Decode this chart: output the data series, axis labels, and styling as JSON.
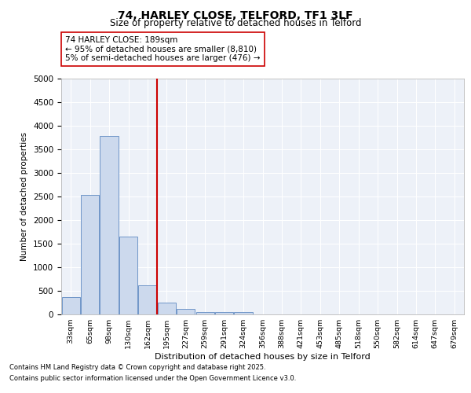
{
  "title1": "74, HARLEY CLOSE, TELFORD, TF1 3LF",
  "title2": "Size of property relative to detached houses in Telford",
  "xlabel": "Distribution of detached houses by size in Telford",
  "ylabel": "Number of detached properties",
  "categories": [
    "33sqm",
    "65sqm",
    "98sqm",
    "130sqm",
    "162sqm",
    "195sqm",
    "227sqm",
    "259sqm",
    "291sqm",
    "324sqm",
    "356sqm",
    "388sqm",
    "421sqm",
    "453sqm",
    "485sqm",
    "518sqm",
    "550sqm",
    "582sqm",
    "614sqm",
    "647sqm",
    "679sqm"
  ],
  "values": [
    370,
    2530,
    3780,
    1650,
    620,
    250,
    110,
    50,
    50,
    50,
    0,
    0,
    0,
    0,
    0,
    0,
    0,
    0,
    0,
    0,
    0
  ],
  "bar_color": "#ccd9ed",
  "bar_edge_color": "#7096c8",
  "vline_color": "#cc0000",
  "annotation_text": "74 HARLEY CLOSE: 189sqm\n← 95% of detached houses are smaller (8,810)\n5% of semi-detached houses are larger (476) →",
  "annotation_box_color": "#ffffff",
  "annotation_box_edge": "#cc0000",
  "ylim": [
    0,
    5000
  ],
  "yticks": [
    0,
    500,
    1000,
    1500,
    2000,
    2500,
    3000,
    3500,
    4000,
    4500,
    5000
  ],
  "bg_color": "#edf1f8",
  "footer1": "Contains HM Land Registry data © Crown copyright and database right 2025.",
  "footer2": "Contains public sector information licensed under the Open Government Licence v3.0.",
  "fig_bg": "#ffffff",
  "grid_color": "#ffffff"
}
